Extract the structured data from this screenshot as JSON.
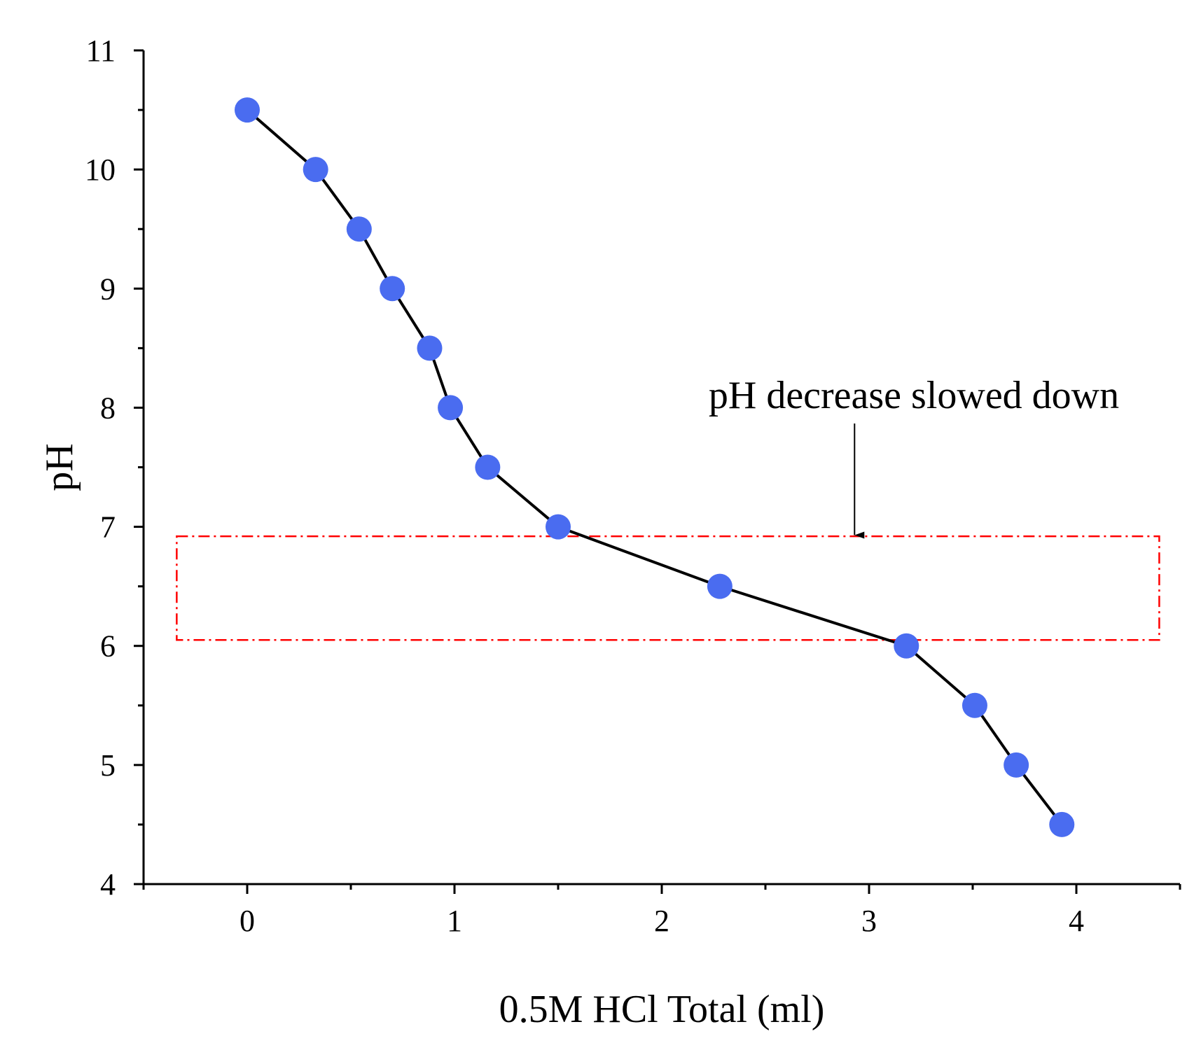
{
  "colors": {
    "marker": "#4a6cf0",
    "line": "#000000",
    "axis": "#000000",
    "box": "#ff0000",
    "background": "#ffffff"
  },
  "chart_data": {
    "type": "line",
    "title": "",
    "xlabel": "0.5M HCl Total (ml)",
    "ylabel": "pH",
    "xlim": [
      -0.5,
      4.5
    ],
    "ylim": [
      4,
      11
    ],
    "x_ticks": [
      0,
      1,
      2,
      3,
      4
    ],
    "x_minor_ticks": [
      -0.5,
      0.5,
      1.5,
      2.5,
      3.5,
      4.5
    ],
    "y_ticks": [
      4,
      5,
      6,
      7,
      8,
      9,
      10,
      11
    ],
    "y_minor_ticks": [
      4.5,
      5.5,
      6.5,
      7.5,
      8.5,
      9.5,
      10.5
    ],
    "grid": false,
    "legend": "none",
    "series": [
      {
        "name": "pH",
        "marker": "circle",
        "x": [
          0,
          0.33,
          0.54,
          0.7,
          0.88,
          0.98,
          1.16,
          1.5,
          2.28,
          3.18,
          3.51,
          3.71,
          3.93
        ],
        "y": [
          10.5,
          10.0,
          9.5,
          9.0,
          8.5,
          8.0,
          7.5,
          7.0,
          6.5,
          6.0,
          5.5,
          5.0,
          4.5
        ]
      }
    ],
    "annotations": [
      {
        "text": "pH decrease slowed down",
        "arrow_target": [
          2.93,
          6.93
        ],
        "text_anchor_point": [
          2.93,
          7.75
        ]
      }
    ],
    "highlight_box": {
      "x_range": [
        -0.34,
        4.4
      ],
      "y_range": [
        6.05,
        6.92
      ],
      "style": "dash-dot"
    }
  }
}
